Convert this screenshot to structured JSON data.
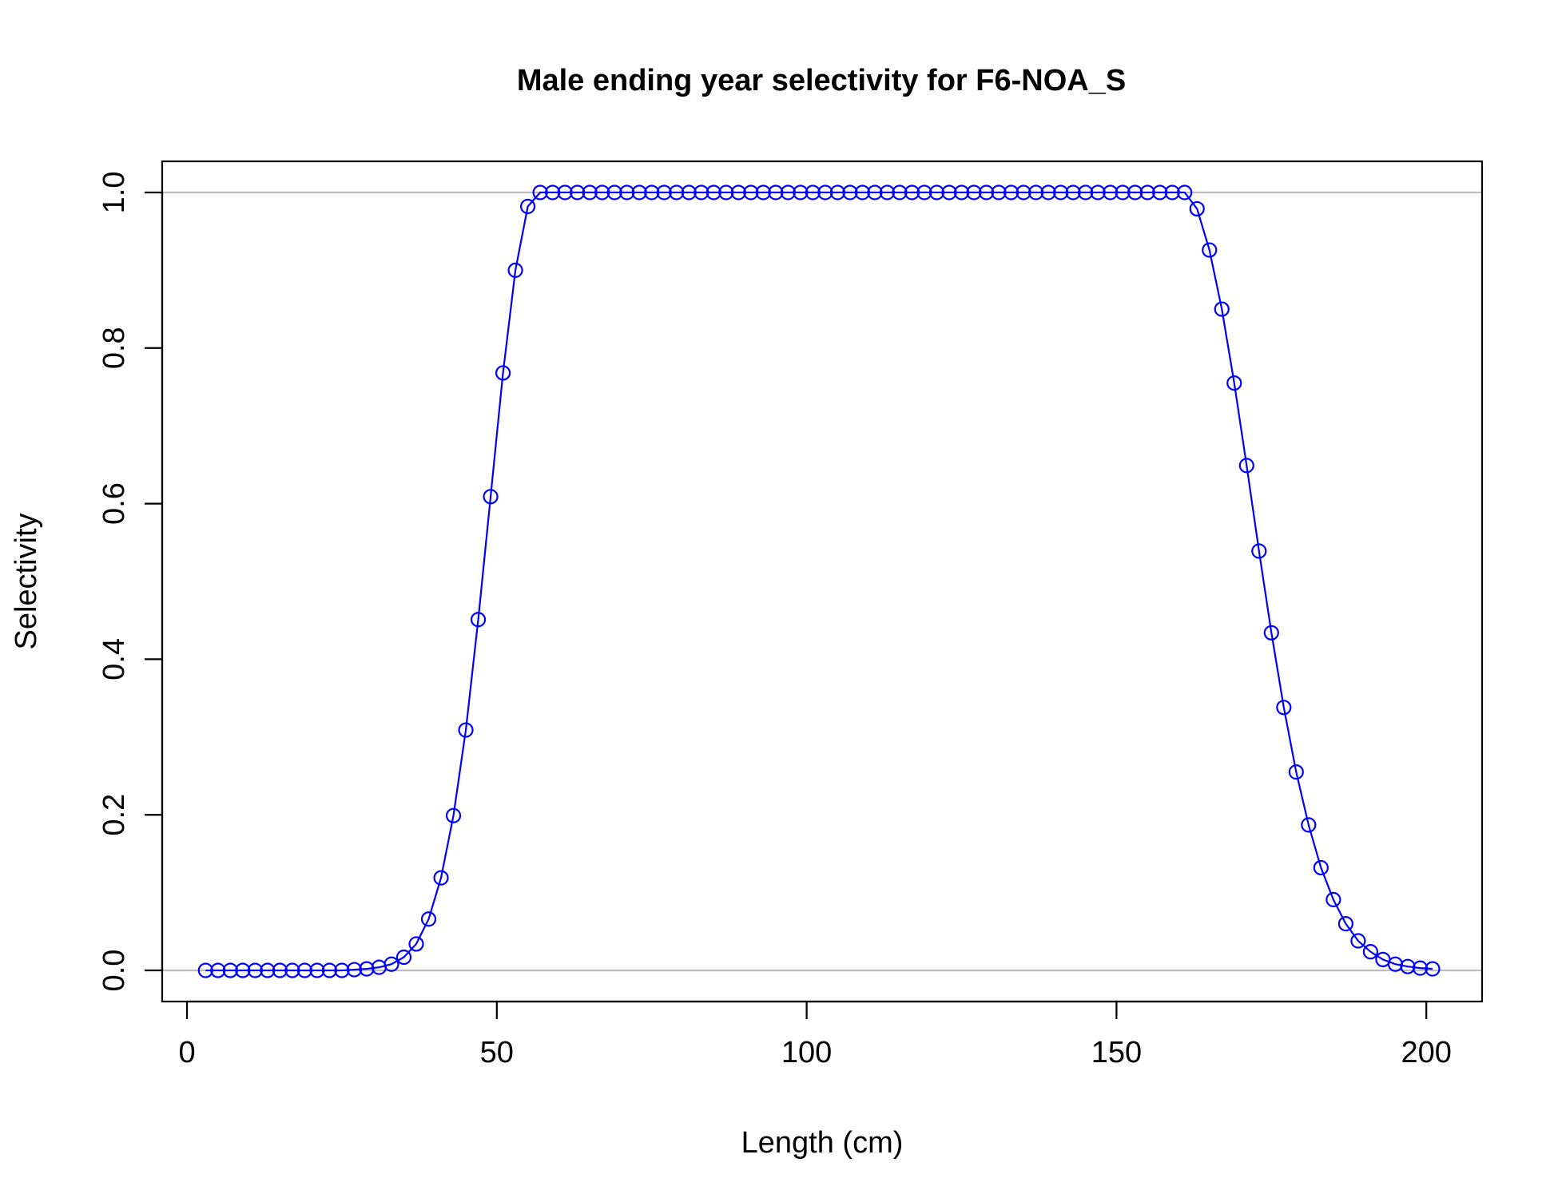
{
  "chart_data": {
    "type": "line",
    "title": "Male ending year selectivity for F6-NOA_S",
    "xlabel": "Length (cm)",
    "ylabel": "Selectivity",
    "xlim": [
      -4,
      209
    ],
    "ylim": [
      -0.04,
      1.04
    ],
    "x_ticks": [
      0,
      50,
      100,
      150,
      200
    ],
    "x_tick_labels": [
      "0",
      "50",
      "100",
      "150",
      "200"
    ],
    "y_ticks": [
      0.0,
      0.2,
      0.4,
      0.6,
      0.8,
      1.0
    ],
    "y_tick_labels": [
      "0.0",
      "0.2",
      "0.4",
      "0.6",
      "0.8",
      "1.0"
    ],
    "reference_lines": [
      0,
      1
    ],
    "colors": {
      "series": "#0000ff",
      "reference": "#bebebe",
      "axes": "#000000"
    },
    "grid": false,
    "series": [
      {
        "marker": "open-circle",
        "x": [
          3,
          5,
          7,
          9,
          11,
          13,
          15,
          17,
          19,
          21,
          23,
          25,
          27,
          29,
          31,
          33,
          35,
          37,
          39,
          41,
          43,
          45,
          47,
          49,
          51,
          53,
          55,
          57,
          59,
          61,
          63,
          65,
          67,
          69,
          71,
          73,
          75,
          77,
          79,
          81,
          83,
          85,
          87,
          89,
          91,
          93,
          95,
          97,
          99,
          101,
          103,
          105,
          107,
          109,
          111,
          113,
          115,
          117,
          119,
          121,
          123,
          125,
          127,
          129,
          131,
          133,
          135,
          137,
          139,
          141,
          143,
          145,
          147,
          149,
          151,
          153,
          155,
          157,
          159,
          161,
          163,
          165,
          167,
          169,
          171,
          173,
          175,
          177,
          179,
          181,
          183,
          185,
          187,
          189,
          191,
          193,
          195,
          197,
          199,
          201
        ],
        "y": [
          0,
          0,
          0,
          0,
          0,
          0,
          0,
          0,
          0,
          0,
          0,
          0,
          0.001,
          0.002,
          0.004,
          0.008,
          0.017,
          0.034,
          0.066,
          0.119,
          0.199,
          0.309,
          0.451,
          0.609,
          0.768,
          0.9,
          0.982,
          1,
          1,
          1,
          1,
          1,
          1,
          1,
          1,
          1,
          1,
          1,
          1,
          1,
          1,
          1,
          1,
          1,
          1,
          1,
          1,
          1,
          1,
          1,
          1,
          1,
          1,
          1,
          1,
          1,
          1,
          1,
          1,
          1,
          1,
          1,
          1,
          1,
          1,
          1,
          1,
          1,
          1,
          1,
          1,
          1,
          1,
          1,
          1,
          1,
          1,
          1,
          1,
          1,
          0.979,
          0.926,
          0.85,
          0.755,
          0.649,
          0.539,
          0.434,
          0.338,
          0.255,
          0.187,
          0.132,
          0.091,
          0.06,
          0.038,
          0.024,
          0.014,
          0.008,
          0.005,
          0.003,
          0.002
        ]
      }
    ]
  }
}
